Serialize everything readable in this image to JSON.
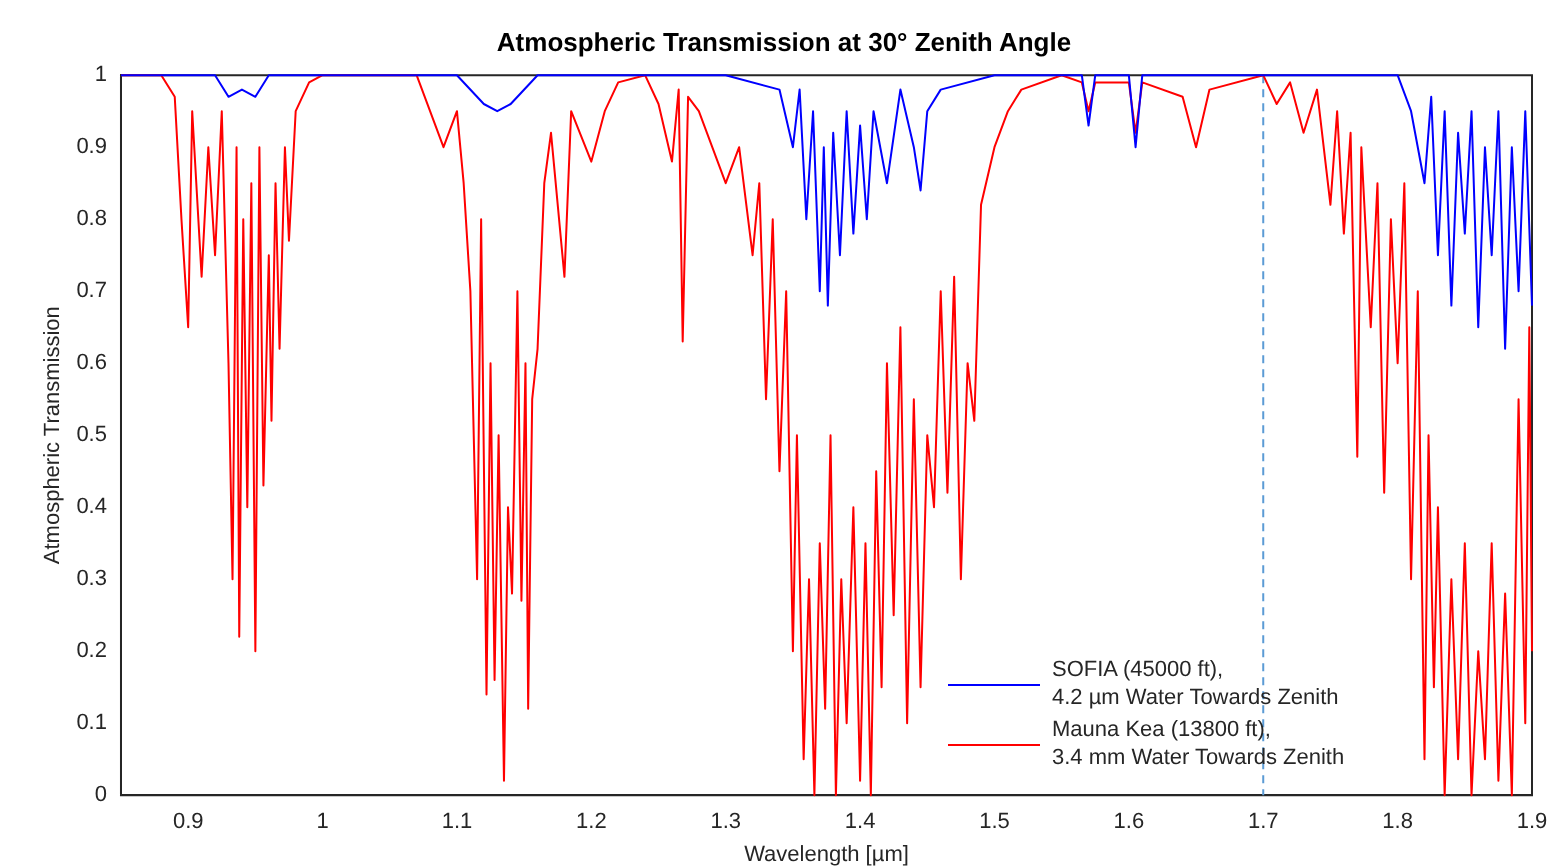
{
  "chart_data": {
    "type": "line",
    "title": "Atmospheric Transmission at 30° Zenith Angle",
    "xlabel": "Wavelength [µm]",
    "ylabel": "Atmospheric Transmission",
    "xlim": [
      0.85,
      1.9
    ],
    "xticks": [
      0.9,
      1,
      1.1,
      1.2,
      1.3,
      1.4,
      1.5,
      1.6,
      1.7,
      1.8,
      1.9
    ],
    "ylim": [
      0,
      1
    ],
    "yticks": [
      0,
      0.1,
      0.2,
      0.3,
      0.4,
      0.5,
      0.6,
      0.7,
      0.8,
      0.9,
      1
    ],
    "grid": false,
    "legend": "bottom right",
    "marker": "none",
    "line_style": "solid",
    "ref_lines": [
      {
        "axis": "x",
        "value": 1.7,
        "color": "#5b9bd5",
        "line_style": "dashed"
      }
    ],
    "series": [
      {
        "name": "SOFIA (45000 ft), 4.2 µm Water Towards Zenith",
        "color": "#0000ff",
        "x": [
          0.85,
          0.92,
          0.93,
          0.94,
          0.95,
          0.96,
          1.1,
          1.12,
          1.13,
          1.14,
          1.16,
          1.3,
          1.34,
          1.35,
          1.355,
          1.36,
          1.365,
          1.37,
          1.373,
          1.376,
          1.38,
          1.385,
          1.39,
          1.395,
          1.4,
          1.405,
          1.41,
          1.42,
          1.43,
          1.44,
          1.445,
          1.45,
          1.46,
          1.5,
          1.565,
          1.57,
          1.575,
          1.6,
          1.605,
          1.61,
          1.8,
          1.81,
          1.82,
          1.825,
          1.83,
          1.835,
          1.84,
          1.845,
          1.85,
          1.855,
          1.86,
          1.865,
          1.87,
          1.875,
          1.88,
          1.885,
          1.89,
          1.895,
          1.9
        ],
        "values": [
          1,
          1,
          0.97,
          0.98,
          0.97,
          1,
          1,
          0.96,
          0.95,
          0.96,
          1,
          1,
          0.98,
          0.9,
          0.98,
          0.8,
          0.95,
          0.7,
          0.9,
          0.68,
          0.92,
          0.75,
          0.95,
          0.78,
          0.93,
          0.8,
          0.95,
          0.85,
          0.98,
          0.9,
          0.84,
          0.95,
          0.98,
          1,
          1,
          0.93,
          1,
          1,
          0.9,
          1,
          1,
          0.95,
          0.85,
          0.97,
          0.75,
          0.95,
          0.68,
          0.92,
          0.78,
          0.95,
          0.65,
          0.9,
          0.75,
          0.95,
          0.62,
          0.9,
          0.7,
          0.95,
          0.68
        ]
      },
      {
        "name": "Mauna Kea (13800 ft), 3.4 mm Water Towards Zenith",
        "color": "#ff0000",
        "x": [
          0.85,
          0.88,
          0.89,
          0.895,
          0.9,
          0.903,
          0.91,
          0.915,
          0.92,
          0.925,
          0.93,
          0.933,
          0.936,
          0.938,
          0.941,
          0.944,
          0.947,
          0.95,
          0.953,
          0.956,
          0.96,
          0.962,
          0.965,
          0.968,
          0.972,
          0.975,
          0.98,
          0.99,
          1.0,
          1.07,
          1.08,
          1.09,
          1.1,
          1.105,
          1.11,
          1.115,
          1.118,
          1.122,
          1.125,
          1.128,
          1.131,
          1.135,
          1.138,
          1.141,
          1.145,
          1.148,
          1.151,
          1.153,
          1.156,
          1.16,
          1.165,
          1.17,
          1.18,
          1.185,
          1.2,
          1.21,
          1.22,
          1.24,
          1.25,
          1.26,
          1.265,
          1.268,
          1.272,
          1.28,
          1.29,
          1.3,
          1.31,
          1.32,
          1.325,
          1.33,
          1.335,
          1.34,
          1.345,
          1.35,
          1.353,
          1.358,
          1.362,
          1.366,
          1.37,
          1.374,
          1.378,
          1.382,
          1.386,
          1.39,
          1.395,
          1.4,
          1.404,
          1.408,
          1.412,
          1.416,
          1.42,
          1.425,
          1.43,
          1.435,
          1.44,
          1.445,
          1.45,
          1.455,
          1.46,
          1.465,
          1.47,
          1.475,
          1.48,
          1.485,
          1.49,
          1.5,
          1.51,
          1.52,
          1.55,
          1.565,
          1.57,
          1.575,
          1.6,
          1.605,
          1.61,
          1.64,
          1.65,
          1.66,
          1.7,
          1.71,
          1.72,
          1.73,
          1.74,
          1.75,
          1.755,
          1.76,
          1.765,
          1.77,
          1.773,
          1.78,
          1.785,
          1.79,
          1.795,
          1.8,
          1.805,
          1.81,
          1.815,
          1.82,
          1.823,
          1.827,
          1.83,
          1.835,
          1.84,
          1.845,
          1.85,
          1.855,
          1.86,
          1.865,
          1.87,
          1.875,
          1.88,
          1.885,
          1.89,
          1.895,
          1.898,
          1.9
        ],
        "values": [
          1,
          1,
          0.97,
          0.8,
          0.65,
          0.95,
          0.72,
          0.9,
          0.75,
          0.95,
          0.6,
          0.3,
          0.9,
          0.22,
          0.8,
          0.4,
          0.85,
          0.2,
          0.9,
          0.43,
          0.75,
          0.52,
          0.85,
          0.62,
          0.9,
          0.77,
          0.95,
          0.99,
          1,
          1,
          0.95,
          0.9,
          0.95,
          0.85,
          0.7,
          0.3,
          0.8,
          0.14,
          0.6,
          0.16,
          0.5,
          0.02,
          0.4,
          0.28,
          0.7,
          0.27,
          0.6,
          0.12,
          0.55,
          0.62,
          0.85,
          0.92,
          0.72,
          0.95,
          0.88,
          0.95,
          0.99,
          1,
          0.96,
          0.88,
          0.98,
          0.63,
          0.97,
          0.95,
          0.9,
          0.85,
          0.9,
          0.75,
          0.85,
          0.55,
          0.8,
          0.45,
          0.7,
          0.2,
          0.5,
          0.05,
          0.3,
          0,
          0.35,
          0.12,
          0.5,
          0,
          0.3,
          0.1,
          0.4,
          0.02,
          0.35,
          0,
          0.45,
          0.15,
          0.6,
          0.25,
          0.65,
          0.1,
          0.55,
          0.15,
          0.5,
          0.4,
          0.7,
          0.42,
          0.72,
          0.3,
          0.6,
          0.52,
          0.82,
          0.9,
          0.95,
          0.98,
          1,
          0.99,
          0.95,
          0.99,
          0.99,
          0.92,
          0.99,
          0.97,
          0.9,
          0.98,
          1,
          0.96,
          0.99,
          0.92,
          0.98,
          0.82,
          0.95,
          0.78,
          0.92,
          0.47,
          0.9,
          0.65,
          0.85,
          0.42,
          0.8,
          0.6,
          0.85,
          0.3,
          0.7,
          0.05,
          0.5,
          0.15,
          0.4,
          0,
          0.3,
          0.05,
          0.35,
          0,
          0.2,
          0.05,
          0.35,
          0.02,
          0.28,
          0,
          0.55,
          0.1,
          0.65,
          0.2
        ]
      }
    ]
  }
}
